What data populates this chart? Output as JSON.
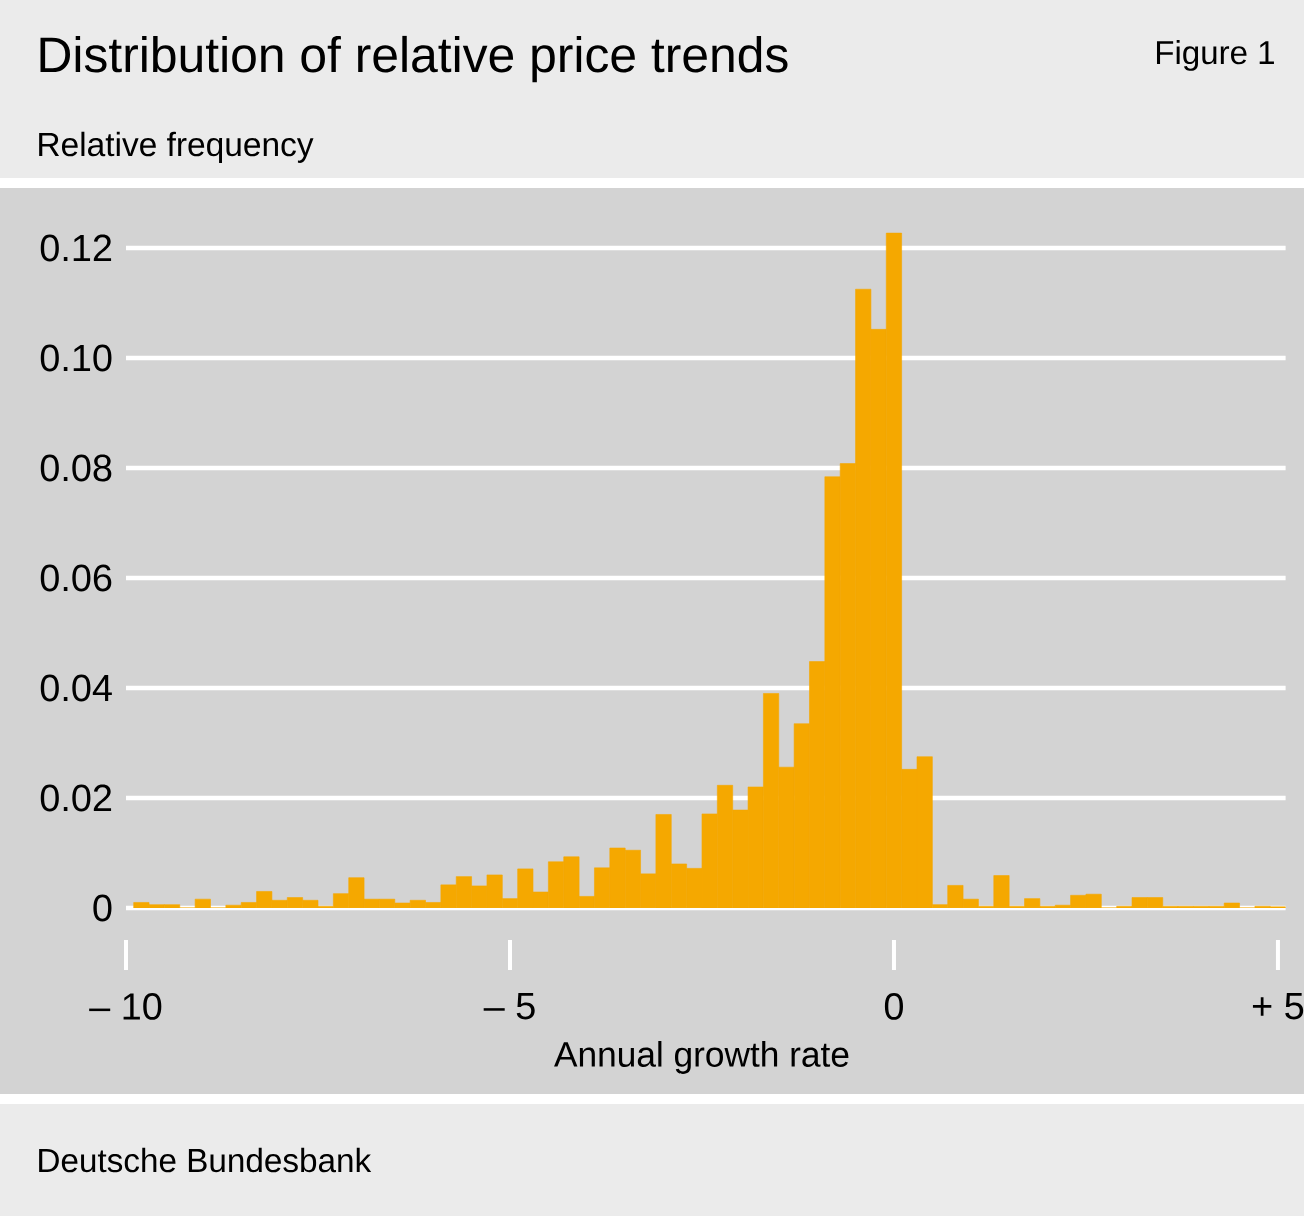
{
  "chart_data": {
    "type": "histogram",
    "title": "Distribution of relative price trends",
    "ylabel": "Relative frequency",
    "xlabel": "Annual growth rate",
    "annotations": [
      "Figure 1",
      "Deutsche Bundesbank"
    ],
    "color": "#f5a800",
    "bins": [
      -9.9,
      -9.7,
      -9.5,
      -9.3,
      -9.1,
      -8.9,
      -8.7,
      -8.5,
      -8.3,
      -8.1,
      -7.9,
      -7.7,
      -7.5,
      -7.3,
      -7.1,
      -6.9,
      -6.7,
      -6.5,
      -6.3,
      -6.1,
      -5.9,
      -5.7,
      -5.5,
      -5.3,
      -5.1,
      -4.9,
      -4.7,
      -4.5,
      -4.3,
      -4.1,
      -3.9,
      -3.7,
      -3.5,
      -3.3,
      -3.1,
      -2.9,
      -2.7,
      -2.5,
      -2.3,
      -2.1,
      -1.9,
      -1.7,
      -1.5,
      -1.3,
      -1.1,
      -0.9,
      -0.7,
      -0.5,
      -0.3,
      -0.1,
      0.1,
      0.3,
      0.5,
      0.7,
      0.9,
      1.1,
      1.3,
      1.5,
      1.7,
      1.9,
      2.1,
      2.3,
      2.5,
      2.7,
      2.9,
      3.1,
      3.3,
      3.5,
      3.7,
      3.9,
      4.1,
      4.3,
      4.5,
      4.7,
      4.9,
      5.1
    ],
    "values": [
      0.001,
      0.0006,
      0.0006,
      0,
      0.0016,
      0,
      0.0005,
      0.001,
      0.003,
      0.0014,
      0.0019,
      0.0014,
      0.0003,
      0.0026,
      0.0055,
      0.0016,
      0.0016,
      0.0009,
      0.0014,
      0.001,
      0.0042,
      0.0057,
      0.004,
      0.006,
      0.0017,
      0.0071,
      0.0029,
      0.0084,
      0.0093,
      0.0021,
      0.0073,
      0.0109,
      0.0105,
      0.0062,
      0.017,
      0.008,
      0.0072,
      0.0171,
      0.0223,
      0.0178,
      0.022,
      0.039,
      0.0256,
      0.0335,
      0.0448,
      0.0784,
      0.0808,
      0.1125,
      0.1052,
      0.1227,
      0.0252,
      0.0275,
      0.0006,
      0.0041,
      0.0016,
      0.0003,
      0.0059,
      0.0003,
      0.0017,
      0.0003,
      0.0005,
      0.0023,
      0.0025,
      0,
      0.0003,
      0.0019,
      0.0019,
      0.0003,
      0.0003,
      0.0003,
      0.0003,
      0.0009,
      0,
      0.0003,
      0.0002
    ],
    "xlim": [
      -10,
      5.1
    ],
    "ylim": [
      0,
      0.13
    ],
    "xticks": [
      {
        "value": -10,
        "label": "– 10"
      },
      {
        "value": -5,
        "label": "– 5"
      },
      0,
      {
        "value": 5,
        "label": "+ 5"
      }
    ],
    "yticks": [
      0,
      0.02,
      0.04,
      0.06,
      0.08,
      {
        "value": 0.1,
        "label": "0.10"
      },
      0.12
    ],
    "grid": "y"
  }
}
